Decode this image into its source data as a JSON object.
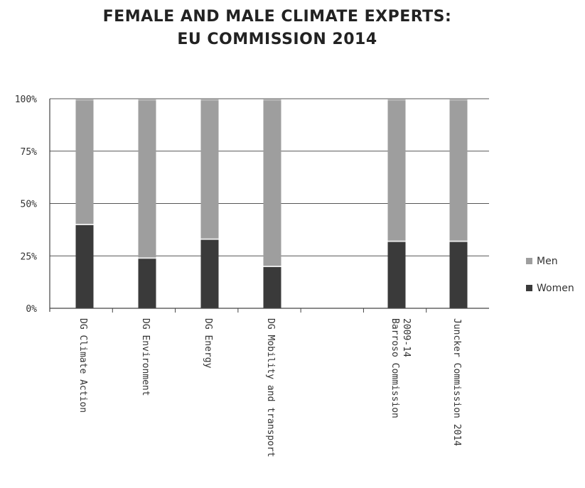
{
  "chart_data": {
    "type": "bar",
    "stacked": true,
    "title_lines": [
      "FEMALE AND MALE CLIMATE EXPERTS:",
      "EU COMMISSION 2014"
    ],
    "categories": [
      [
        "DG Climate Action"
      ],
      [
        "DG Environment"
      ],
      [
        "DG Energy"
      ],
      [
        "DG Mobility and transport"
      ],
      [
        "Barroso Commission",
        "2009-14"
      ],
      [
        "Juncker Commission 2014"
      ]
    ],
    "series": [
      {
        "name": "Women",
        "color": "#3a3a3a",
        "values": [
          40,
          24,
          33,
          20,
          32,
          32
        ]
      },
      {
        "name": "Men",
        "color": "#9e9e9e",
        "values": [
          60,
          76,
          67,
          80,
          68,
          68
        ]
      }
    ],
    "y_ticks": [
      "0%",
      "25%",
      "50%",
      "75%",
      "100%"
    ],
    "ylim": [
      0,
      100
    ],
    "grid": true,
    "legend_position": "right"
  }
}
